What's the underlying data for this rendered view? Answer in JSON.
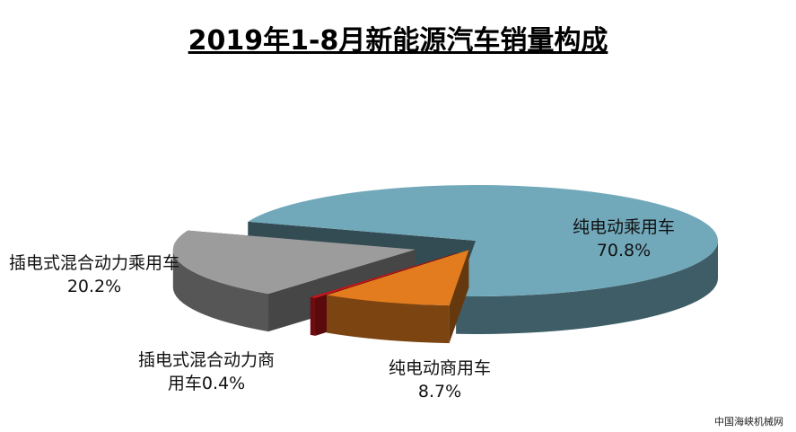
{
  "chart_data": {
    "type": "pie3d",
    "title": "2019年1-8月新能源汽车销量构成",
    "categories": [
      "纯电动乘用车",
      "纯电动商用车",
      "插电式混合动力商用车",
      "插电式混合动力乘用车"
    ],
    "values": [
      70.8,
      8.7,
      0.4,
      20.2
    ],
    "value_labels": [
      "70.8%",
      "8.7%",
      "0.4%",
      "20.2%"
    ],
    "colors": [
      "#71a9bb",
      "#e27c1e",
      "#c8161d",
      "#9c9c9c"
    ]
  },
  "watermark": "中国海峡机械网"
}
